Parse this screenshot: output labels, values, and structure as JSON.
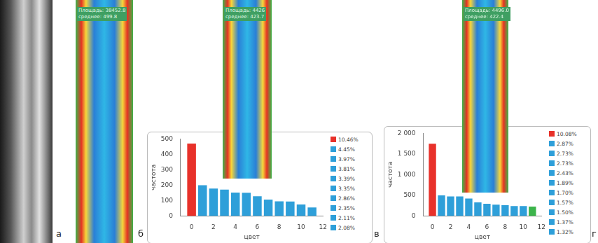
{
  "panels": [
    {
      "label": "а"
    },
    {
      "label": "б",
      "texts": [
        "Площадь: 38452.8",
        "среднее: 499.8"
      ]
    },
    {
      "label": "в",
      "texts": [
        "Площадь: 4426",
        "среднее: 423.7"
      ]
    },
    {
      "label": "г",
      "texts": [
        "Площадь: 4496.0",
        "среднее: 422.4"
      ]
    }
  ],
  "chart_data": [
    {
      "type": "bar",
      "x_label": "цвет",
      "y_label": "частота",
      "x": [
        0,
        1,
        2,
        3,
        4,
        5,
        6,
        7,
        8,
        9,
        10,
        11
      ],
      "values": [
        470,
        200,
        178,
        171,
        152,
        151,
        128,
        106,
        95,
        94,
        75,
        55
      ],
      "colors": [
        "#e8312a",
        "#2e9fd9",
        "#2e9fd9",
        "#2e9fd9",
        "#2e9fd9",
        "#2e9fd9",
        "#2e9fd9",
        "#2e9fd9",
        "#2e9fd9",
        "#2e9fd9",
        "#2e9fd9",
        "#2e9fd9"
      ],
      "xlim": [
        -1,
        12
      ],
      "xticks": [
        0,
        2,
        4,
        6,
        8,
        10,
        12
      ],
      "ylim": [
        0,
        500
      ],
      "yticks": [
        0,
        100,
        200,
        300,
        400,
        500
      ],
      "grid": false,
      "legend_items": [
        "10.46%",
        "4.45%",
        "3.97%",
        "3.81%",
        "3.39%",
        "3.35%",
        "2.86%",
        "2.35%",
        "2.11%",
        "2.08%"
      ],
      "legend_colors": [
        "#e8312a",
        "#2e9fd9",
        "#2e9fd9",
        "#2e9fd9",
        "#2e9fd9",
        "#2e9fd9",
        "#2e9fd9",
        "#2e9fd9",
        "#2e9fd9",
        "#2e9fd9"
      ]
    },
    {
      "type": "bar",
      "x_label": "цвет",
      "y_label": "частота",
      "x": [
        0,
        1,
        2,
        3,
        4,
        5,
        6,
        7,
        8,
        9,
        10,
        11
      ],
      "values": [
        1750,
        498,
        474,
        474,
        422,
        328,
        295,
        272,
        260,
        238,
        238,
        229
      ],
      "colors": [
        "#e8312a",
        "#2e9fd9",
        "#2e9fd9",
        "#2e9fd9",
        "#2e9fd9",
        "#2e9fd9",
        "#2e9fd9",
        "#2e9fd9",
        "#2e9fd9",
        "#2e9fd9",
        "#2e9fd9",
        "#3cb44b"
      ],
      "xlim": [
        -1,
        12
      ],
      "xticks": [
        0,
        2,
        4,
        6,
        8,
        10,
        12
      ],
      "ylim": [
        0,
        2000
      ],
      "yticks": [
        0,
        500,
        {
          "value": 1000,
          "label": "1 000"
        },
        {
          "value": 1500,
          "label": "1 500"
        },
        {
          "value": 2000,
          "label": "2 000"
        }
      ],
      "grid": false,
      "legend_items": [
        "10.08%",
        "2.87%",
        "2.73%",
        "2.73%",
        "2.43%",
        "1.89%",
        "1.70%",
        "1.57%",
        "1.50%",
        "1.37%",
        "1.32%"
      ],
      "legend_colors": [
        "#e8312a",
        "#2e9fd9",
        "#2e9fd9",
        "#2e9fd9",
        "#2e9fd9",
        "#2e9fd9",
        "#2e9fd9",
        "#2e9fd9",
        "#2e9fd9",
        "#2e9fd9",
        "#2e9fd9"
      ]
    }
  ]
}
